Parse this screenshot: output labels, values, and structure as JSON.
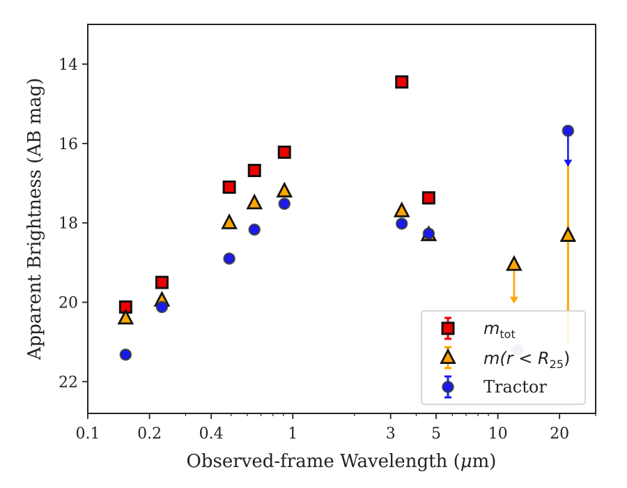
{
  "chart_data": {
    "type": "scatter",
    "xscale": "log",
    "xlim": [
      0.1,
      30
    ],
    "ylim": [
      22.8,
      13.0
    ],
    "y_inverted": true,
    "xlabel_prefix": "Observed-frame Wavelength (",
    "xlabel_mu": "μ",
    "xlabel_suffix": "m)",
    "ylabel": "Apparent Brightness (AB mag)",
    "xticks": [
      {
        "value": 0.1,
        "label": "0.1"
      },
      {
        "value": 0.2,
        "label": "0.2"
      },
      {
        "value": 0.4,
        "label": "0.4"
      },
      {
        "value": 1,
        "label": "1"
      },
      {
        "value": 3,
        "label": "3"
      },
      {
        "value": 5,
        "label": "5"
      },
      {
        "value": 10,
        "label": "10"
      },
      {
        "value": 20,
        "label": "20"
      }
    ],
    "xminor": [
      0.3,
      0.5,
      0.6,
      0.7,
      0.8,
      0.9,
      2,
      4,
      6,
      7,
      8,
      9,
      30
    ],
    "yticks": [
      {
        "value": 14,
        "label": "14"
      },
      {
        "value": 16,
        "label": "16"
      },
      {
        "value": 18,
        "label": "18"
      },
      {
        "value": 20,
        "label": "20"
      },
      {
        "value": 22,
        "label": "22"
      }
    ],
    "legend_position": "lower right",
    "series": [
      {
        "key": "mtot",
        "marker": "square",
        "color": "#ee0000",
        "errcolor": "#ee0000",
        "points": [
          {
            "x": 0.153,
            "y": 20.12
          },
          {
            "x": 0.23,
            "y": 19.5
          },
          {
            "x": 0.49,
            "y": 17.1
          },
          {
            "x": 0.65,
            "y": 16.68
          },
          {
            "x": 0.91,
            "y": 16.22
          },
          {
            "x": 3.4,
            "y": 14.45
          },
          {
            "x": 4.6,
            "y": 17.37
          }
        ]
      },
      {
        "key": "mr25",
        "marker": "triangle",
        "color": "#ffa500",
        "errcolor": "#ffa500",
        "points": [
          {
            "x": 0.153,
            "y": 20.4
          },
          {
            "x": 0.23,
            "y": 19.95
          },
          {
            "x": 0.49,
            "y": 18.0
          },
          {
            "x": 0.65,
            "y": 17.5
          },
          {
            "x": 0.91,
            "y": 17.2
          },
          {
            "x": 3.4,
            "y": 17.7
          },
          {
            "x": 4.6,
            "y": 18.3
          },
          {
            "x": 12.0,
            "y": 19.05,
            "upper_limit_to": 20.0
          },
          {
            "x": 22.0,
            "y": 18.32,
            "err_low": 16.5,
            "err_high": 21.0
          }
        ]
      },
      {
        "key": "tractor",
        "marker": "circle",
        "color": "#1a1aee",
        "errcolor": "#1a1aee",
        "points": [
          {
            "x": 0.153,
            "y": 21.32
          },
          {
            "x": 0.23,
            "y": 20.12
          },
          {
            "x": 0.49,
            "y": 18.9
          },
          {
            "x": 0.65,
            "y": 18.17
          },
          {
            "x": 0.91,
            "y": 17.52
          },
          {
            "x": 3.4,
            "y": 18.02
          },
          {
            "x": 4.6,
            "y": 18.27
          },
          {
            "x": 12.5,
            "y": 21.2,
            "faint": true
          },
          {
            "x": 22.0,
            "y": 15.68,
            "upper_limit_to": 16.55
          }
        ]
      }
    ],
    "legend": [
      {
        "series": "mtot",
        "label_base": "m",
        "label_sub": "tot",
        "label_rest": ""
      },
      {
        "series": "mr25",
        "label_base": "m",
        "label_sub": "",
        "label_rest": "(r < R"
      },
      {
        "series": "tractor",
        "label_base": "",
        "label_sub": "",
        "label_rest": "Tractor"
      }
    ],
    "legend_r25_sub": "25",
    "legend_r25_close": ")"
  }
}
